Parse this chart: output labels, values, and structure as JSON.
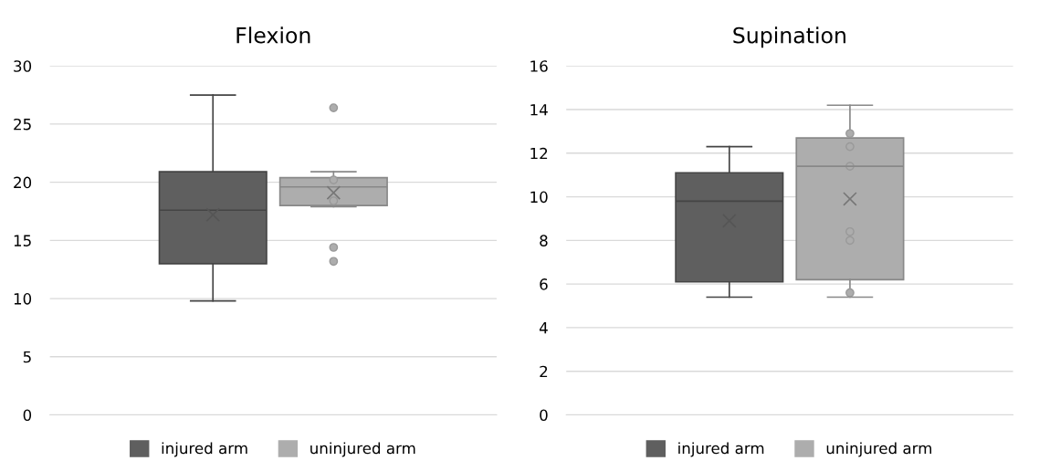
{
  "chart_data": [
    {
      "type": "box",
      "title": "Flexion",
      "categories": [
        null
      ],
      "ylim": [
        0,
        30
      ],
      "yticks": [
        0,
        5,
        10,
        15,
        20,
        25,
        30
      ],
      "grid": "y",
      "legend": "bottom",
      "tick_labels": "y",
      "series": [
        {
          "name": "injured arm",
          "color": "#5f5f5f",
          "boxes": [
            {
              "low": 9.8,
              "q1": 13.0,
              "median": 17.6,
              "q3": 20.9,
              "high": 27.5,
              "mean": 17.2
            }
          ]
        },
        {
          "name": "uninjured arm",
          "color": "#adadad",
          "boxes": [
            {
              "low": 17.9,
              "q1": 18.0,
              "median": 19.6,
              "q3": 20.4,
              "high": 20.9,
              "mean": 19.1,
              "outliers": [
                26.4,
                20.2,
                18.4,
                14.4,
                13.2
              ]
            }
          ]
        }
      ]
    },
    {
      "type": "box",
      "title": "Supination",
      "categories": [
        null
      ],
      "ylim": [
        0,
        16
      ],
      "yticks": [
        0,
        2,
        4,
        6,
        8,
        10,
        12,
        14,
        16
      ],
      "grid": "y",
      "legend": "bottom",
      "tick_labels": "y",
      "series": [
        {
          "name": "injured arm",
          "color": "#5f5f5f",
          "boxes": [
            {
              "low": 5.4,
              "q1": 6.1,
              "median": 9.8,
              "q3": 11.1,
              "high": 12.3,
              "mean": 8.9
            }
          ]
        },
        {
          "name": "uninjured arm",
          "color": "#adadad",
          "boxes": [
            {
              "low": 5.4,
              "q1": 6.2,
              "median": 11.4,
              "q3": 12.7,
              "high": 14.2,
              "mean": 9.9,
              "outliers": [
                12.9,
                12.3,
                11.4,
                8.4,
                8.0,
                5.6
              ]
            }
          ]
        }
      ]
    }
  ]
}
